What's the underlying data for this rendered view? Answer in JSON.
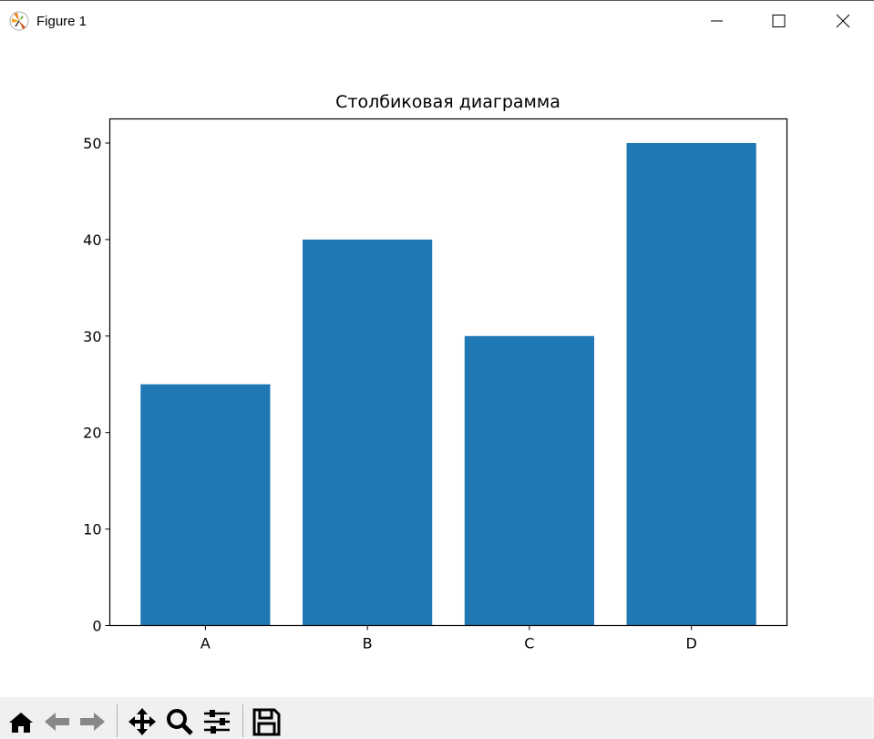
{
  "window": {
    "title": "Figure 1",
    "app_icon": "matplotlib-icon",
    "controls": [
      "minimize-icon",
      "maximize-icon",
      "close-icon"
    ]
  },
  "chart_data": {
    "type": "bar",
    "title": "Столбиковая диаграмма",
    "categories": [
      "A",
      "B",
      "C",
      "D"
    ],
    "values": [
      25,
      40,
      30,
      50
    ],
    "xlabel": "",
    "ylabel": "",
    "ylim": [
      0,
      52.5
    ],
    "yticks": [
      0,
      10,
      20,
      30,
      40,
      50
    ],
    "bar_color": "#1f77b4",
    "grid": false
  },
  "toolbar": {
    "icons": [
      "home-icon",
      "back-icon",
      "forward-icon",
      "pan-icon",
      "zoom-icon",
      "configure-subplots-icon",
      "save-icon"
    ]
  }
}
